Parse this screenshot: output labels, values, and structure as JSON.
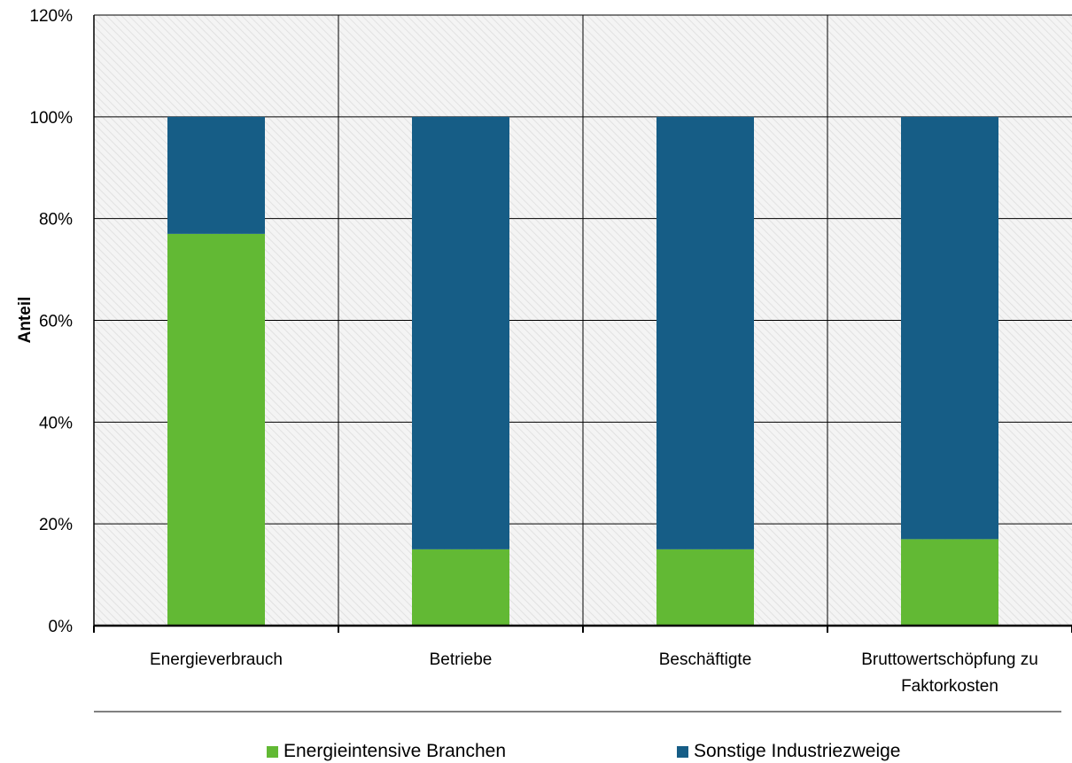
{
  "chart_data": {
    "type": "bar",
    "stacked": true,
    "title": "",
    "xlabel": "",
    "ylabel": "Anteil",
    "ylim": [
      0,
      120
    ],
    "yticks": [
      "0%",
      "20%",
      "40%",
      "60%",
      "80%",
      "100%",
      "120%"
    ],
    "categories": [
      [
        "Energieverbrauch"
      ],
      [
        "Betriebe"
      ],
      [
        "Beschäftigte"
      ],
      [
        "Bruttowertschöpfung zu",
        "Faktorkosten"
      ]
    ],
    "series": [
      {
        "name": "Energieintensive Branchen",
        "color": "#62b934",
        "values": [
          77,
          15,
          15,
          17
        ]
      },
      {
        "name": "Sonstige Industriezweige",
        "color": "#165d86",
        "values": [
          23,
          85,
          85,
          83
        ]
      }
    ],
    "grid": true,
    "legend_position": "bottom"
  }
}
